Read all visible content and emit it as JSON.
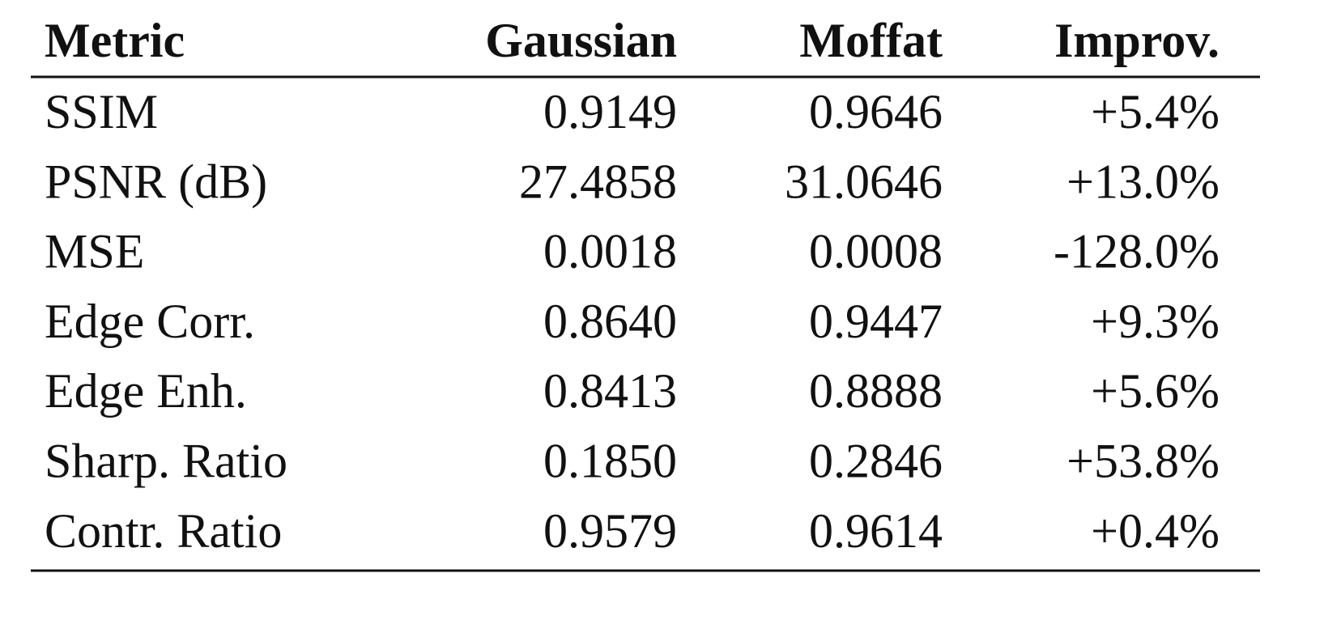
{
  "table": {
    "header": [
      "Metric",
      "Gaussian",
      "Moffat",
      "Improv."
    ],
    "rows": [
      [
        "SSIM",
        "0.9149",
        "0.9646",
        "+5.4%"
      ],
      [
        "PSNR (dB)",
        "27.4858",
        "31.0646",
        "+13.0%"
      ],
      [
        "MSE",
        "0.0018",
        "0.0008",
        "-128.0%"
      ],
      [
        "Edge Corr.",
        "0.8640",
        "0.9447",
        "+9.3%"
      ],
      [
        "Edge Enh.",
        "0.8413",
        "0.8888",
        "+5.6%"
      ],
      [
        "Sharp. Ratio",
        "0.1850",
        "0.2846",
        "+53.8%"
      ],
      [
        "Contr. Ratio",
        "0.9579",
        "0.9614",
        "+0.4%"
      ]
    ]
  }
}
